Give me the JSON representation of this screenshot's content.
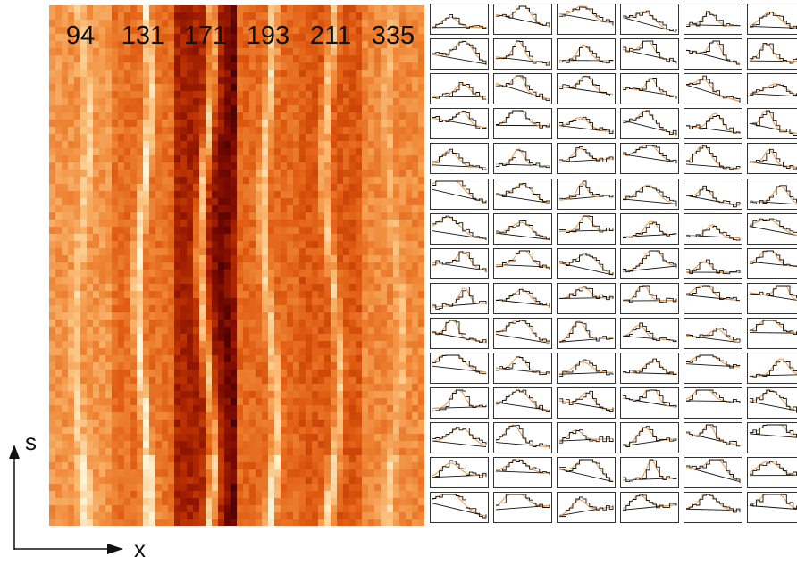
{
  "figure": {
    "strip_labels": [
      "94",
      "131",
      "171",
      "193",
      "211",
      "335"
    ],
    "axes": {
      "vertical_label": "s",
      "horizontal_label": "x"
    },
    "colors": {
      "colormap": [
        "#3b0000",
        "#7a0a00",
        "#b42a00",
        "#df5a10",
        "#f08a3a",
        "#fbc27e",
        "#fff3d6"
      ],
      "observed_profile": "#111111",
      "fitted_profile": "#f0a050"
    }
  },
  "fit_grid": {
    "rows": 15,
    "columns": 6
  }
}
